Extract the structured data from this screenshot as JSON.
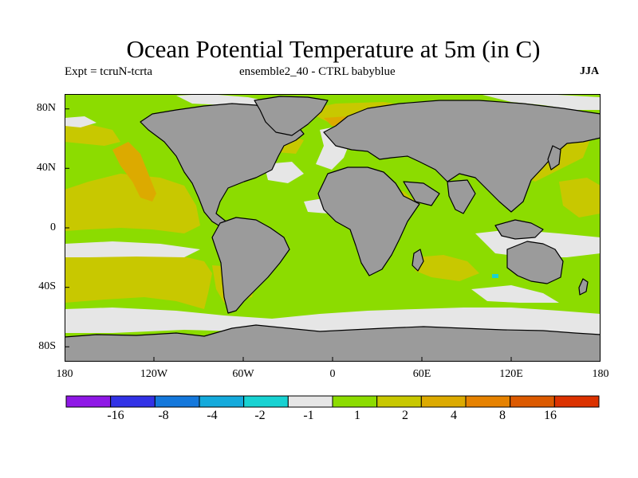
{
  "title": "Ocean Potential Temperature at 5m (in C)",
  "subtitle_left": "Expt = tcruN-tcrta",
  "subtitle_center": "ensemble2_40 - CTRL babyblue",
  "subtitle_right": "JJA",
  "axes": {
    "y_ticks": [
      {
        "label": "80N",
        "lat": 80
      },
      {
        "label": "40N",
        "lat": 40
      },
      {
        "label": "0",
        "lat": 0
      },
      {
        "label": "40S",
        "lat": -40
      },
      {
        "label": "80S",
        "lat": -80
      }
    ],
    "x_ticks": [
      {
        "label": "180",
        "lon": -180
      },
      {
        "label": "120W",
        "lon": -120
      },
      {
        "label": "60W",
        "lon": -60
      },
      {
        "label": "0",
        "lon": 0
      },
      {
        "label": "60E",
        "lon": 60
      },
      {
        "label": "120E",
        "lon": 120
      },
      {
        "label": "180",
        "lon": 180
      }
    ],
    "lon_range": [
      -180,
      180
    ],
    "lat_range": [
      -90,
      90
    ]
  },
  "colors": {
    "land": "#9b9b9b",
    "coast": "#000000",
    "ocean_default": "#8cdc00"
  },
  "colorbar": {
    "levels": [
      "-16",
      "-8",
      "-4",
      "-2",
      "-1",
      "1",
      "2",
      "4",
      "8",
      "16"
    ],
    "colors": [
      "#8f18e6",
      "#3232e6",
      "#1478dc",
      "#14aadc",
      "#18d2d2",
      "#e6e6e6",
      "#8cdc00",
      "#c8c800",
      "#dcaa00",
      "#e68200",
      "#dc5a00",
      "#dc3200"
    ]
  }
}
